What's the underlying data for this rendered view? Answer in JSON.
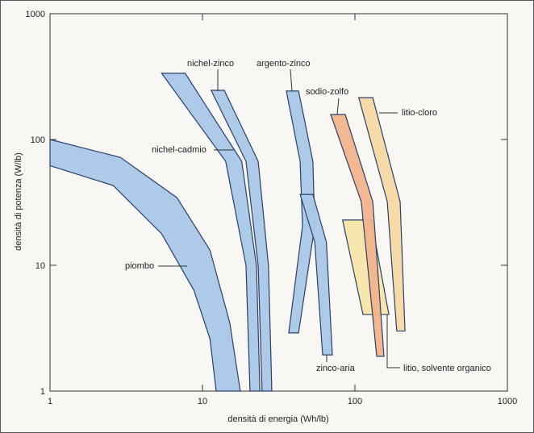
{
  "chart_data": {
    "type": "band",
    "xlabel": "densità di energia (Wh/lb)",
    "ylabel": "densità di potenza (W/lb)",
    "xscale": "log",
    "yscale": "log",
    "xlim": [
      1,
      1000
    ],
    "ylim": [
      1,
      1000
    ],
    "xticks": [
      1,
      10,
      100,
      1000
    ],
    "yticks": [
      1,
      10,
      100,
      1000
    ],
    "series": [
      {
        "name": "piombo",
        "color": "#a9c8e8",
        "x": [
          1,
          2.9,
          6.8,
          11.2,
          15.1,
          17.7,
          12.3,
          11.2,
          8.8,
          5.4,
          2.6,
          1
        ],
        "y": [
          100,
          72,
          34.5,
          13.2,
          3.5,
          1,
          1,
          2.6,
          6.3,
          17.8,
          43,
          62
        ]
      },
      {
        "name": "nichel-cadmio",
        "color": "#a9c8e8",
        "x": [
          5.4,
          14.2,
          19.3,
          20.5,
          23.8,
          22.6,
          18.1,
          7.7
        ],
        "y": [
          336,
          67,
          9.9,
          1,
          1,
          9.9,
          67,
          336
        ]
      },
      {
        "name": "nichel-zinco",
        "color": "#a9c8e8",
        "x": [
          11.4,
          19.3,
          23.2,
          24.6,
          28.5,
          27.1,
          23.2,
          13.9
        ],
        "y": [
          246,
          67,
          9.9,
          1,
          1,
          9.9,
          67,
          246
        ]
      },
      {
        "name": "argento-zinco",
        "color": "#a9c8e8",
        "x": [
          35.5,
          43.7,
          45.3,
          36.8,
          42.7,
          54.5,
          53,
          42.7
        ],
        "y": [
          243,
          67,
          20.6,
          2.9,
          2.9,
          20.6,
          67,
          243
        ]
      },
      {
        "name": "zinco-aria",
        "color": "#a9c8e8",
        "x": [
          43.7,
          54.5,
          61.4,
          71.1,
          65,
          53
        ],
        "y": [
          36.6,
          15.3,
          1.94,
          1.94,
          15.3,
          36.6
        ]
      },
      {
        "name": "litio, solvente organico",
        "color": "#f8e6a8",
        "x": [
          83,
          113,
          167,
          128
        ],
        "y": [
          22.9,
          4.06,
          4.06,
          22.9
        ]
      },
      {
        "name": "sodio-zolfo",
        "color": "#f2b48c",
        "x": [
          69.4,
          110,
          139,
          155,
          131,
          86.4
        ],
        "y": [
          158,
          32,
          1.89,
          1.89,
          32,
          158
        ]
      },
      {
        "name": "litio-cloro",
        "color": "#f6d9a4",
        "x": [
          106,
          163,
          188,
          213,
          198,
          131
        ],
        "y": [
          215,
          32,
          3.0,
          3.0,
          32,
          215
        ]
      }
    ]
  }
}
